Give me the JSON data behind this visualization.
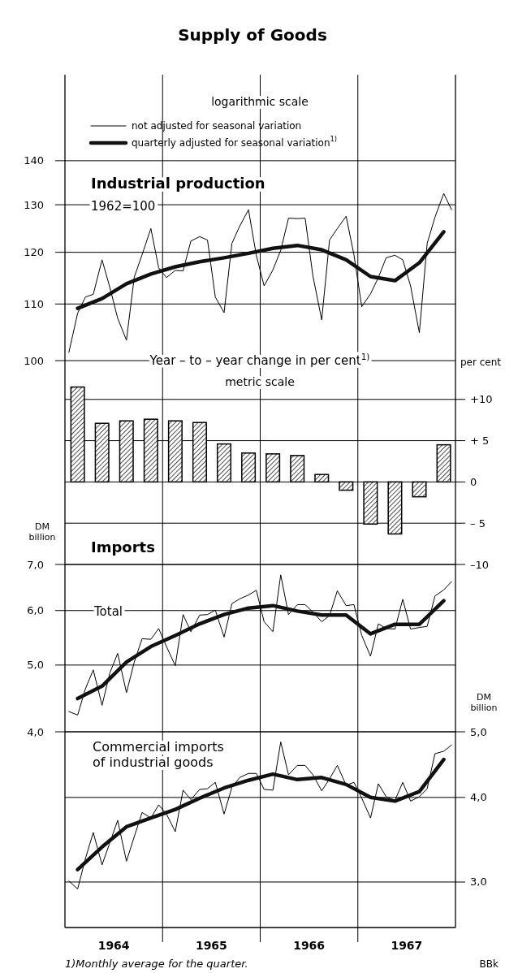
{
  "chart_data": [
    {
      "type": "line",
      "title": "Supply of Goods",
      "subtitle": "Industrial production",
      "annotations": [
        "logarithmic scale",
        "1962=100"
      ],
      "x": [
        1964.04,
        1964.13,
        1964.21,
        1964.29,
        1964.38,
        1964.46,
        1964.54,
        1964.63,
        1964.71,
        1964.79,
        1964.88,
        1964.96,
        1965.04,
        1965.13,
        1965.21,
        1965.29,
        1965.38,
        1965.46,
        1965.54,
        1965.63,
        1965.71,
        1965.79,
        1965.88,
        1965.96,
        1966.04,
        1966.13,
        1966.21,
        1966.29,
        1966.38,
        1966.46,
        1966.54,
        1966.63,
        1966.71,
        1966.79,
        1966.88,
        1966.96,
        1967.04,
        1967.13,
        1967.21,
        1967.29,
        1967.38,
        1967.46,
        1967.54,
        1967.63,
        1967.71,
        1967.79,
        1967.88,
        1967.96
      ],
      "xlim": [
        1964,
        1968
      ],
      "xticks": [
        {
          "value": 1965,
          "label": null
        },
        {
          "value": 1966,
          "label": null
        },
        {
          "value": 1967,
          "label": null
        }
      ],
      "ylim": [
        100,
        161.8
      ],
      "yticks": [
        100,
        110,
        120,
        130,
        140
      ],
      "log": true,
      "grid": true,
      "legend": "top",
      "tick_labels": "y",
      "series": [
        {
          "name": "not adjusted for seasonal variation",
          "color": "#000000",
          "values": [
            101.4,
            108.3,
            111.3,
            111.8,
            118.5,
            113.1,
            107.4,
            103.5,
            115.1,
            119.5,
            124.9,
            116.9,
            115.0,
            116.4,
            116.3,
            122.3,
            123.2,
            122.5,
            111.3,
            108.4,
            121.8,
            125.4,
            128.9,
            119.4,
            113.4,
            116.5,
            120.4,
            127.1,
            127.0,
            127.1,
            115.3,
            107.1,
            122.5,
            124.9,
            127.5,
            119.5,
            109.5,
            111.9,
            115.0,
            118.9,
            119.4,
            118.5,
            113.4,
            104.8,
            121.8,
            127.3,
            132.5,
            128.9
          ]
        },
        {
          "name": "quarterly adjusted for seasonal variation$^{1)}$",
          "color": "#111111",
          "x": [
            1964.13,
            1964.38,
            1964.63,
            1964.88,
            1965.13,
            1965.38,
            1965.63,
            1965.88,
            1966.13,
            1966.38,
            1966.63,
            1966.88,
            1967.13,
            1967.38,
            1967.63,
            1967.88
          ],
          "values": [
            109.2,
            111.0,
            113.8,
            115.7,
            117.1,
            118.1,
            118.9,
            119.8,
            120.8,
            121.4,
            120.5,
            118.5,
            115.2,
            114.4,
            117.9,
            124.2
          ]
        }
      ]
    },
    {
      "type": "bar",
      "title": "Year – to – year change in per cent$^{1)}$",
      "subtitle": "metric scale",
      "y2label": "per cent",
      "x": [
        1964.13,
        1964.38,
        1964.63,
        1964.88,
        1965.13,
        1965.38,
        1965.63,
        1965.88,
        1966.13,
        1966.38,
        1966.63,
        1966.88,
        1967.13,
        1967.38,
        1967.63,
        1967.88
      ],
      "xlim": [
        1964,
        1968
      ],
      "xticks": [
        {
          "value": 1965,
          "label": null
        },
        {
          "value": 1966,
          "label": null
        },
        {
          "value": 1967,
          "label": null
        }
      ],
      "y2lim": [
        -10,
        14.7
      ],
      "y2ticks": [
        {
          "value": 10,
          "label": "+10"
        },
        {
          "value": 5,
          "label": "+ 5"
        },
        {
          "value": 0,
          "label": "0"
        },
        {
          "value": -5,
          "label": "– 5"
        },
        {
          "value": -10,
          "label": "–10"
        }
      ],
      "grid": true,
      "tick_labels": "y",
      "series": [
        {
          "axis": "y2",
          "color": "#000000",
          "values": [
            11.5,
            7.1,
            7.4,
            7.6,
            7.4,
            7.2,
            4.6,
            3.5,
            3.4,
            3.2,
            0.9,
            -1.0,
            -5.1,
            -6.3,
            -1.8,
            4.5
          ]
        }
      ]
    },
    {
      "type": "line",
      "title": "Imports",
      "ylabel": "DM billion",
      "annotations": [
        "Total"
      ],
      "x": [
        1964.04,
        1964.13,
        1964.21,
        1964.29,
        1964.38,
        1964.46,
        1964.54,
        1964.63,
        1964.71,
        1964.79,
        1964.88,
        1964.96,
        1965.04,
        1965.13,
        1965.21,
        1965.29,
        1965.38,
        1965.46,
        1965.54,
        1965.63,
        1965.71,
        1965.79,
        1965.88,
        1965.96,
        1966.04,
        1966.13,
        1966.21,
        1966.29,
        1966.38,
        1966.46,
        1966.54,
        1966.63,
        1966.71,
        1966.79,
        1966.88,
        1966.96,
        1967.04,
        1967.13,
        1967.21,
        1967.29,
        1967.38,
        1967.46,
        1967.54,
        1967.63,
        1967.71,
        1967.79,
        1967.88,
        1967.96
      ],
      "xlim": [
        1964,
        1968
      ],
      "xticks": [
        {
          "value": 1965,
          "label": null
        },
        {
          "value": 1966,
          "label": null
        },
        {
          "value": 1967,
          "label": null
        }
      ],
      "ylim": [
        4,
        7
      ],
      "yticks": [
        {
          "value": 4,
          "label": "4,0"
        },
        {
          "value": 5,
          "label": "5,0"
        },
        {
          "value": 6,
          "label": "6,0"
        },
        {
          "value": 7,
          "label": "7,0"
        }
      ],
      "log": true,
      "grid": true,
      "tick_labels": "y",
      "series": [
        {
          "color": "#000000",
          "values": [
            4.28,
            4.23,
            4.62,
            4.92,
            4.37,
            4.87,
            5.2,
            4.56,
            5.05,
            5.46,
            5.45,
            5.65,
            5.32,
            4.99,
            5.92,
            5.59,
            5.91,
            5.92,
            6.01,
            5.49,
            6.14,
            6.24,
            6.32,
            6.42,
            5.78,
            5.59,
            6.76,
            5.92,
            6.12,
            6.12,
            5.97,
            5.78,
            5.9,
            6.41,
            6.1,
            6.12,
            5.52,
            5.15,
            5.74,
            5.65,
            5.64,
            6.23,
            5.64,
            5.67,
            5.69,
            6.3,
            6.43,
            6.61
          ]
        },
        {
          "color": "#111111",
          "x": [
            1964.13,
            1964.38,
            1964.63,
            1964.88,
            1965.13,
            1965.38,
            1965.63,
            1965.88,
            1966.13,
            1966.38,
            1966.63,
            1966.88,
            1967.13,
            1967.38,
            1967.63,
            1967.88
          ],
          "values": [
            4.47,
            4.66,
            5.05,
            5.32,
            5.52,
            5.74,
            5.92,
            6.05,
            6.1,
            5.99,
            5.91,
            5.91,
            5.55,
            5.73,
            5.73,
            6.2
          ]
        }
      ]
    },
    {
      "type": "line",
      "title": "Commercial imports of industrial goods",
      "y2label": "DM billion",
      "annotations": [
        "1)Monthly average for the quarter.",
        "BBk"
      ],
      "x": [
        1964.04,
        1964.13,
        1964.21,
        1964.29,
        1964.38,
        1964.46,
        1964.54,
        1964.63,
        1964.71,
        1964.79,
        1964.88,
        1964.96,
        1965.04,
        1965.13,
        1965.21,
        1965.29,
        1965.38,
        1965.46,
        1965.54,
        1965.63,
        1965.71,
        1965.79,
        1965.88,
        1965.96,
        1966.04,
        1966.13,
        1966.21,
        1966.29,
        1966.38,
        1966.46,
        1966.54,
        1966.63,
        1966.71,
        1966.79,
        1966.88,
        1966.96,
        1967.04,
        1967.13,
        1967.21,
        1967.29,
        1967.38,
        1967.46,
        1967.54,
        1967.63,
        1967.71,
        1967.79,
        1967.88,
        1967.96
      ],
      "xlim": [
        1964,
        1968
      ],
      "xticks": [
        {
          "value": 1964.5,
          "label": "1964"
        },
        {
          "value": 1965,
          "label": null
        },
        {
          "value": 1965.5,
          "label": "1965"
        },
        {
          "value": 1966,
          "label": null
        },
        {
          "value": 1966.5,
          "label": "1966"
        },
        {
          "value": 1967,
          "label": null
        },
        {
          "value": 1967.5,
          "label": "1967"
        }
      ],
      "y2lim": [
        2.57,
        5
      ],
      "y2ticks": [
        {
          "value": 3,
          "label": "3,0"
        },
        {
          "value": 4,
          "label": "4,0"
        },
        {
          "value": 5,
          "label": "5,0"
        }
      ],
      "log": "y2",
      "grid": true,
      "series": [
        {
          "axis": "y2",
          "color": "#000000",
          "values": [
            3.01,
            2.93,
            3.25,
            3.55,
            3.18,
            3.43,
            3.7,
            3.22,
            3.5,
            3.8,
            3.73,
            3.9,
            3.78,
            3.56,
            4.1,
            3.97,
            4.11,
            4.12,
            4.21,
            3.78,
            4.14,
            4.28,
            4.34,
            4.34,
            4.11,
            4.1,
            4.83,
            4.32,
            4.46,
            4.46,
            4.32,
            4.09,
            4.26,
            4.46,
            4.17,
            4.21,
            3.99,
            3.73,
            4.19,
            4.01,
            3.96,
            4.21,
            3.95,
            4.01,
            4.12,
            4.64,
            4.68,
            4.78
          ]
        },
        {
          "axis": "y2",
          "color": "#111111",
          "x": [
            1964.13,
            1964.38,
            1964.63,
            1964.88,
            1965.13,
            1965.38,
            1965.63,
            1965.88,
            1966.13,
            1966.38,
            1966.63,
            1966.88,
            1967.13,
            1967.38,
            1967.63,
            1967.88
          ],
          "values": [
            3.13,
            3.38,
            3.62,
            3.73,
            3.84,
            3.99,
            4.13,
            4.24,
            4.33,
            4.25,
            4.28,
            4.18,
            4.0,
            3.95,
            4.08,
            4.55
          ]
        }
      ]
    }
  ]
}
